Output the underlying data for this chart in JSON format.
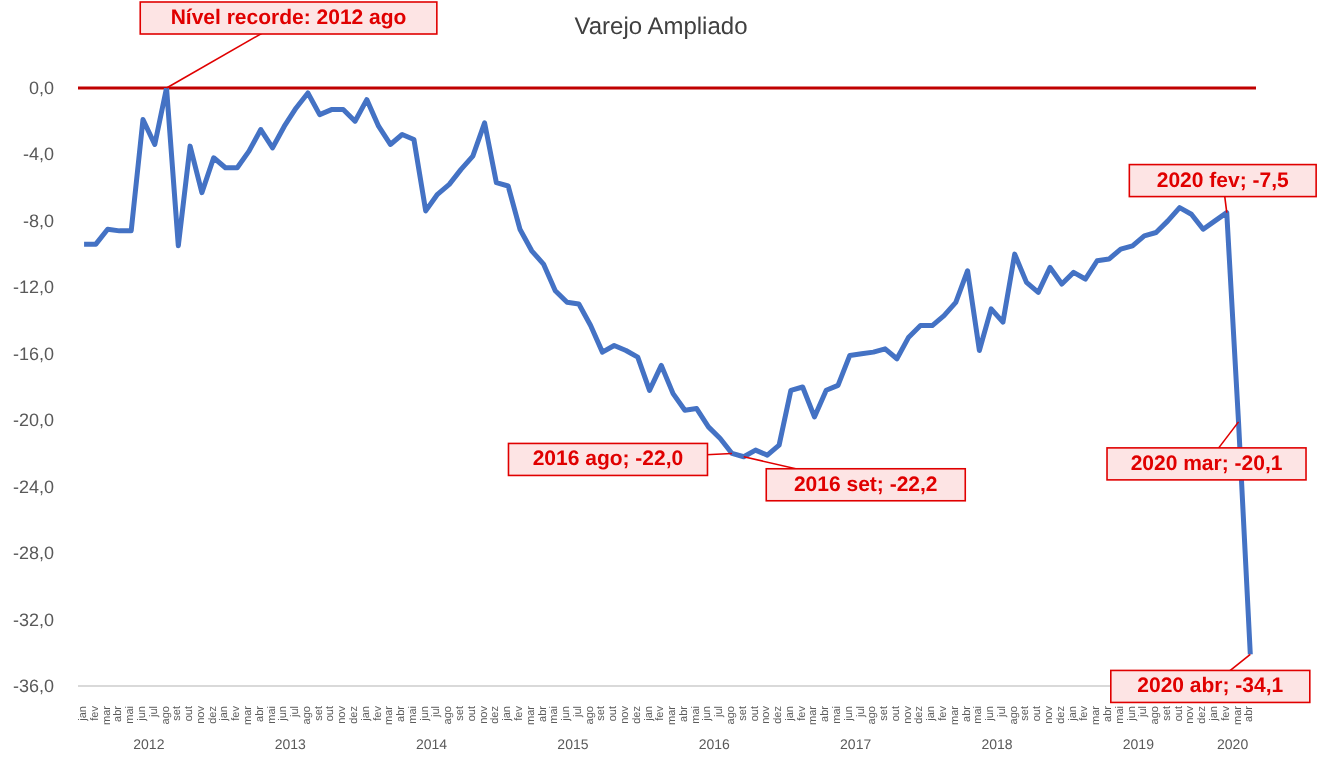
{
  "chart_data": {
    "type": "line",
    "title": "Varejo Ampliado",
    "x": [
      "2012-01",
      "2012-02",
      "2012-03",
      "2012-04",
      "2012-05",
      "2012-06",
      "2012-07",
      "2012-08",
      "2012-09",
      "2012-10",
      "2012-11",
      "2012-12",
      "2013-01",
      "2013-02",
      "2013-03",
      "2013-04",
      "2013-05",
      "2013-06",
      "2013-07",
      "2013-08",
      "2013-09",
      "2013-10",
      "2013-11",
      "2013-12",
      "2014-01",
      "2014-02",
      "2014-03",
      "2014-04",
      "2014-05",
      "2014-06",
      "2014-07",
      "2014-08",
      "2014-09",
      "2014-10",
      "2014-11",
      "2014-12",
      "2015-01",
      "2015-02",
      "2015-03",
      "2015-04",
      "2015-05",
      "2015-06",
      "2015-07",
      "2015-08",
      "2015-09",
      "2015-10",
      "2015-11",
      "2015-12",
      "2016-01",
      "2016-02",
      "2016-03",
      "2016-04",
      "2016-05",
      "2016-06",
      "2016-07",
      "2016-08",
      "2016-09",
      "2016-10",
      "2016-11",
      "2016-12",
      "2017-01",
      "2017-02",
      "2017-03",
      "2017-04",
      "2017-05",
      "2017-06",
      "2017-07",
      "2017-08",
      "2017-09",
      "2017-10",
      "2017-11",
      "2017-12",
      "2018-01",
      "2018-02",
      "2018-03",
      "2018-04",
      "2018-05",
      "2018-06",
      "2018-07",
      "2018-08",
      "2018-09",
      "2018-10",
      "2018-11",
      "2018-12",
      "2019-01",
      "2019-02",
      "2019-03",
      "2019-04",
      "2019-05",
      "2019-06",
      "2019-07",
      "2019-08",
      "2019-09",
      "2019-10",
      "2019-11",
      "2019-12",
      "2020-01",
      "2020-02",
      "2020-03",
      "2020-04"
    ],
    "series": [
      {
        "color": "#4472c4",
        "values": [
          -9.4,
          -9.4,
          -8.5,
          -8.6,
          -8.6,
          -1.9,
          -3.4,
          0.0,
          -9.5,
          -3.5,
          -6.3,
          -4.2,
          -4.8,
          -4.8,
          -3.8,
          -2.5,
          -3.6,
          -2.3,
          -1.2,
          -0.3,
          -1.6,
          -1.3,
          -1.3,
          -2.0,
          -0.7,
          -2.3,
          -3.4,
          -2.8,
          -3.1,
          -7.4,
          -6.4,
          -5.8,
          -4.9,
          -4.1,
          -2.1,
          -5.7,
          -5.9,
          -8.5,
          -9.8,
          -10.6,
          -12.2,
          -12.9,
          -13.0,
          -14.3,
          -15.9,
          -15.5,
          -15.8,
          -16.2,
          -18.2,
          -16.7,
          -18.4,
          -19.4,
          -19.3,
          -20.4,
          -21.1,
          -22.0,
          -22.2,
          -21.8,
          -22.1,
          -21.5,
          -18.2,
          -18.0,
          -19.8,
          -18.2,
          -17.9,
          -16.1,
          -16.0,
          -15.9,
          -15.7,
          -16.3,
          -15.0,
          -14.3,
          -14.3,
          -13.7,
          -12.9,
          -11.0,
          -15.8,
          -13.3,
          -14.1,
          -10.0,
          -11.7,
          -12.3,
          -10.8,
          -11.8,
          -11.1,
          -11.5,
          -10.4,
          -10.3,
          -9.7,
          -9.5,
          -8.9,
          -8.7,
          -8.0,
          -7.2,
          -7.6,
          -8.5,
          -8.0,
          -7.5,
          -20.1,
          -34.1
        ]
      }
    ],
    "xlim": [
      "2011-12-16",
      "2020-04-16"
    ],
    "xticks": [
      {
        "value": "2012-01",
        "label": "jan"
      },
      {
        "value": "2012-02",
        "label": "fev"
      },
      {
        "value": "2012-03",
        "label": "mar"
      },
      {
        "value": "2012-04",
        "label": "abr"
      },
      {
        "value": "2012-05",
        "label": "mai"
      },
      {
        "value": "2012-06",
        "label": "jun"
      },
      {
        "value": "2012-07",
        "label": "jul"
      },
      {
        "value": "2012-08",
        "label": "ago"
      },
      {
        "value": "2012-09",
        "label": "set"
      },
      {
        "value": "2012-10",
        "label": "out"
      },
      {
        "value": "2012-11",
        "label": "nov"
      },
      {
        "value": "2012-12",
        "label": "dez"
      },
      {
        "value": "2013-01",
        "label": "jan"
      },
      {
        "value": "2013-02",
        "label": "fev"
      },
      {
        "value": "2013-03",
        "label": "mar"
      },
      {
        "value": "2013-04",
        "label": "abr"
      },
      {
        "value": "2013-05",
        "label": "mai"
      },
      {
        "value": "2013-06",
        "label": "jun"
      },
      {
        "value": "2013-07",
        "label": "jul"
      },
      {
        "value": "2013-08",
        "label": "ago"
      },
      {
        "value": "2013-09",
        "label": "set"
      },
      {
        "value": "2013-10",
        "label": "out"
      },
      {
        "value": "2013-11",
        "label": "nov"
      },
      {
        "value": "2013-12",
        "label": "dez"
      },
      {
        "value": "2014-01",
        "label": "jan"
      },
      {
        "value": "2014-02",
        "label": "fev"
      },
      {
        "value": "2014-03",
        "label": "mar"
      },
      {
        "value": "2014-04",
        "label": "abr"
      },
      {
        "value": "2014-05",
        "label": "mai"
      },
      {
        "value": "2014-06",
        "label": "jun"
      },
      {
        "value": "2014-07",
        "label": "jul"
      },
      {
        "value": "2014-08",
        "label": "ago"
      },
      {
        "value": "2014-09",
        "label": "set"
      },
      {
        "value": "2014-10",
        "label": "out"
      },
      {
        "value": "2014-11",
        "label": "nov"
      },
      {
        "value": "2014-12",
        "label": "dez"
      },
      {
        "value": "2015-01",
        "label": "jan"
      },
      {
        "value": "2015-02",
        "label": "fev"
      },
      {
        "value": "2015-03",
        "label": "mar"
      },
      {
        "value": "2015-04",
        "label": "abr"
      },
      {
        "value": "2015-05",
        "label": "mai"
      },
      {
        "value": "2015-06",
        "label": "jun"
      },
      {
        "value": "2015-07",
        "label": "jul"
      },
      {
        "value": "2015-08",
        "label": "ago"
      },
      {
        "value": "2015-09",
        "label": "set"
      },
      {
        "value": "2015-10",
        "label": "out"
      },
      {
        "value": "2015-11",
        "label": "nov"
      },
      {
        "value": "2015-12",
        "label": "dez"
      },
      {
        "value": "2016-01",
        "label": "jan"
      },
      {
        "value": "2016-02",
        "label": "fev"
      },
      {
        "value": "2016-03",
        "label": "mar"
      },
      {
        "value": "2016-04",
        "label": "abr"
      },
      {
        "value": "2016-05",
        "label": "mai"
      },
      {
        "value": "2016-06",
        "label": "jun"
      },
      {
        "value": "2016-07",
        "label": "jul"
      },
      {
        "value": "2016-08",
        "label": "ago"
      },
      {
        "value": "2016-09",
        "label": "set"
      },
      {
        "value": "2016-10",
        "label": "out"
      },
      {
        "value": "2016-11",
        "label": "nov"
      },
      {
        "value": "2016-12",
        "label": "dez"
      },
      {
        "value": "2017-01",
        "label": "jan"
      },
      {
        "value": "2017-02",
        "label": "fev"
      },
      {
        "value": "2017-03",
        "label": "mar"
      },
      {
        "value": "2017-04",
        "label": "abr"
      },
      {
        "value": "2017-05",
        "label": "mai"
      },
      {
        "value": "2017-06",
        "label": "jun"
      },
      {
        "value": "2017-07",
        "label": "jul"
      },
      {
        "value": "2017-08",
        "label": "ago"
      },
      {
        "value": "2017-09",
        "label": "set"
      },
      {
        "value": "2017-10",
        "label": "out"
      },
      {
        "value": "2017-11",
        "label": "nov"
      },
      {
        "value": "2017-12",
        "label": "dez"
      },
      {
        "value": "2018-01",
        "label": "jan"
      },
      {
        "value": "2018-02",
        "label": "fev"
      },
      {
        "value": "2018-03",
        "label": "mar"
      },
      {
        "value": "2018-04",
        "label": "abr"
      },
      {
        "value": "2018-05",
        "label": "mai"
      },
      {
        "value": "2018-06",
        "label": "jun"
      },
      {
        "value": "2018-07",
        "label": "jul"
      },
      {
        "value": "2018-08",
        "label": "ago"
      },
      {
        "value": "2018-09",
        "label": "set"
      },
      {
        "value": "2018-10",
        "label": "out"
      },
      {
        "value": "2018-11",
        "label": "nov"
      },
      {
        "value": "2018-12",
        "label": "dez"
      },
      {
        "value": "2019-01",
        "label": "jan"
      },
      {
        "value": "2019-02",
        "label": "fev"
      },
      {
        "value": "2019-03",
        "label": "mar"
      },
      {
        "value": "2019-04",
        "label": "abr"
      },
      {
        "value": "2019-05",
        "label": "mai"
      },
      {
        "value": "2019-06",
        "label": "jun"
      },
      {
        "value": "2019-07",
        "label": "jul"
      },
      {
        "value": "2019-08",
        "label": "ago"
      },
      {
        "value": "2019-09",
        "label": "set"
      },
      {
        "value": "2019-10",
        "label": "out"
      },
      {
        "value": "2019-11",
        "label": "nov"
      },
      {
        "value": "2019-12",
        "label": "dez"
      },
      {
        "value": "2020-01",
        "label": "jan"
      },
      {
        "value": "2020-02",
        "label": "fev"
      },
      {
        "value": "2020-03",
        "label": "mar"
      },
      {
        "value": "2020-04",
        "label": "abr"
      }
    ],
    "ylim": [
      -36,
      0
    ],
    "yticks": [
      {
        "value": 0,
        "label": "0,0"
      },
      {
        "value": -4,
        "label": "-4,0"
      },
      {
        "value": -8,
        "label": "-8,0"
      },
      {
        "value": -12,
        "label": "-12,0"
      },
      {
        "value": -16,
        "label": "-16,0"
      },
      {
        "value": -20,
        "label": "-20,0"
      },
      {
        "value": -24,
        "label": "-24,0"
      },
      {
        "value": -28,
        "label": "-28,0"
      },
      {
        "value": -32,
        "label": "-32,0"
      },
      {
        "value": -36,
        "label": "-36,0"
      }
    ],
    "ref_lines": [
      {
        "axis": "y",
        "value": 0,
        "color": "#c00000"
      }
    ],
    "annotations": [
      {
        "text": "Nível recorde: 2012 ago",
        "x": "2012-08",
        "y": 0.0
      },
      {
        "text": "2016 ago; -22,0",
        "x": "2016-08",
        "y": -22.0
      },
      {
        "text": "2016 set; -22,2",
        "x": "2016-09",
        "y": -22.2
      },
      {
        "text": "2020 fev; -7,5",
        "x": "2020-02",
        "y": -7.5
      },
      {
        "text": "2020 mar; -20,1",
        "x": "2020-03",
        "y": -20.1
      },
      {
        "text": "2020 abr; -34,1",
        "x": "2020-04",
        "y": -34.1
      },
      "2012",
      "2013",
      "2014",
      "2015",
      "2016",
      "2017",
      "2018",
      "2019",
      "2020"
    ],
    "grid": false,
    "legend": false,
    "marker": "none",
    "line_style": "solid"
  }
}
